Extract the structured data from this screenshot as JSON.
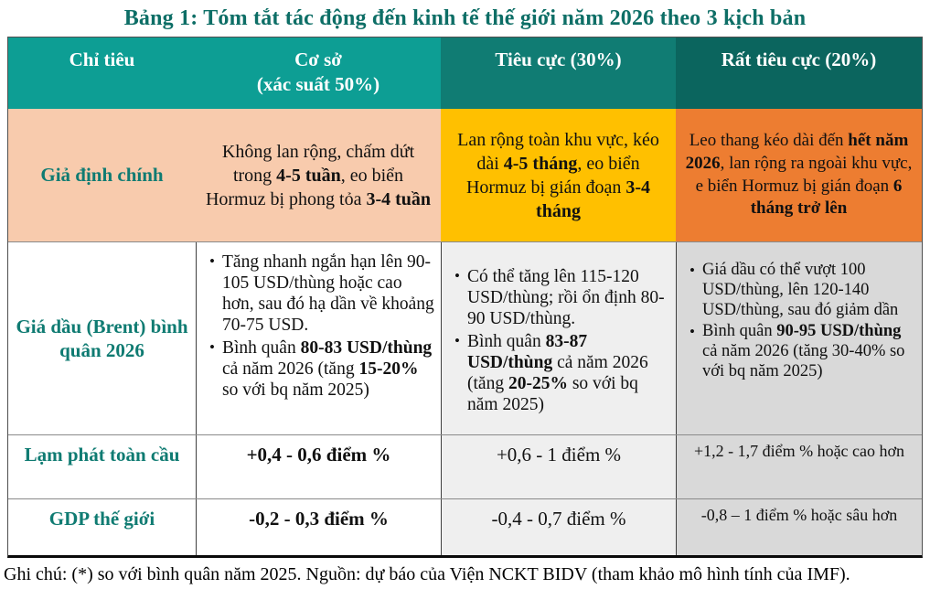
{
  "title": "Bảng 1: Tóm tắt tác động đến kinh tế thế giới năm 2026 theo 3 kịch bản",
  "colors": {
    "title_text": "#0d6e66",
    "header_bg_base": "#0d9e94",
    "header_bg_negative": "#107c73",
    "header_bg_very_negative": "#0b655e",
    "header_text": "#ffffff",
    "row_label_text": "#0f7b72",
    "assumption_bg_base": "#f8cbad",
    "assumption_bg_negative": "#ffc000",
    "assumption_bg_very_negative": "#ed7d31",
    "col_bg_negative": "#efefef",
    "col_bg_very_negative": "#d9d9d9",
    "body_text": "#111111"
  },
  "header": {
    "indicator": "Chỉ tiêu",
    "base_line1": "Cơ sở",
    "base_line2": "(xác suất 50%)",
    "negative": "Tiêu cực (30%)",
    "very_negative": "Rất tiêu cực (20%)"
  },
  "rows": [
    {
      "label": "Giả định chính",
      "base": {
        "segments": [
          {
            "t": "Không lan rộng, chấm dứt trong "
          },
          {
            "t": "4-5 tuần",
            "b": true
          },
          {
            "t": ", eo biển Hormuz bị phong tỏa "
          },
          {
            "t": "3-4 tuần",
            "b": true
          }
        ]
      },
      "negative": {
        "segments": [
          {
            "t": "Lan rộng toàn khu vực, kéo dài "
          },
          {
            "t": "4-5 tháng",
            "b": true
          },
          {
            "t": ", eo biển Hormuz bị gián đoạn "
          },
          {
            "t": "3-4 tháng",
            "b": true
          }
        ]
      },
      "very_negative": {
        "segments": [
          {
            "t": "Leo thang kéo dài đến "
          },
          {
            "t": "hết năm 2026",
            "b": true
          },
          {
            "t": ", lan rộng ra ngoài khu vực, e biển Hormuz bị gián đoạn "
          },
          {
            "t": "6 tháng trở lên",
            "b": true
          }
        ]
      }
    },
    {
      "label": "Giá dầu (Brent) bình quân 2026",
      "base": {
        "bullets": [
          [
            {
              "t": "Tăng nhanh ngắn hạn lên 90-105 USD/thùng hoặc cao hơn, sau đó hạ dần về khoảng 70-75 USD."
            }
          ],
          [
            {
              "t": "Bình quân "
            },
            {
              "t": "80-83 USD/thùng",
              "b": true
            },
            {
              "t": " cả năm 2026 (tăng "
            },
            {
              "t": "15-20%",
              "b": true
            },
            {
              "t": " so với bq năm 2025)"
            }
          ]
        ]
      },
      "negative": {
        "bullets": [
          [
            {
              "t": "Có thể tăng lên 115-120 USD/thùng; rồi ổn định 80-90 USD/thùng."
            }
          ],
          [
            {
              "t": "Bình quân "
            },
            {
              "t": "83-87 USD/thùng",
              "b": true
            },
            {
              "t": " cả năm 2026 (tăng "
            },
            {
              "t": "20-25%",
              "b": true
            },
            {
              "t": " so với bq năm 2025)"
            }
          ]
        ]
      },
      "very_negative": {
        "bullets": [
          [
            {
              "t": "Giá dầu có thể vượt 100 USD/thùng, lên 120-140 USD/thùng, sau đó giảm dần"
            }
          ],
          [
            {
              "t": "Bình quân "
            },
            {
              "t": "90-95 USD/thùng",
              "b": true
            },
            {
              "t": " cả năm 2026 (tăng 30-40% so với bq năm 2025)"
            }
          ]
        ]
      }
    },
    {
      "label": "Lạm phát toàn cầu",
      "base": {
        "segments": [
          {
            "t": "+0,4 - 0,6 điểm %",
            "b": true
          }
        ]
      },
      "negative": {
        "segments": [
          {
            "t": "+0,6 - 1 điểm %"
          }
        ]
      },
      "very_negative": {
        "segments": [
          {
            "t": "+1,2 - 1,7 điểm % hoặc cao hơn"
          }
        ]
      }
    },
    {
      "label": "GDP thế giới",
      "base": {
        "segments": [
          {
            "t": "-0,2 - 0,3 điểm %",
            "b": true
          }
        ]
      },
      "negative": {
        "segments": [
          {
            "t": "-0,4 - 0,7 điểm %"
          }
        ]
      },
      "very_negative": {
        "segments": [
          {
            "t": "-0,8 – 1 điểm % hoặc sâu hơn"
          }
        ]
      }
    }
  ],
  "footnote": "Ghi chú: (*) so với bình quân năm 2025. Nguồn: dự báo của Viện NCKT BIDV (tham khảo mô hình tính của IMF)."
}
